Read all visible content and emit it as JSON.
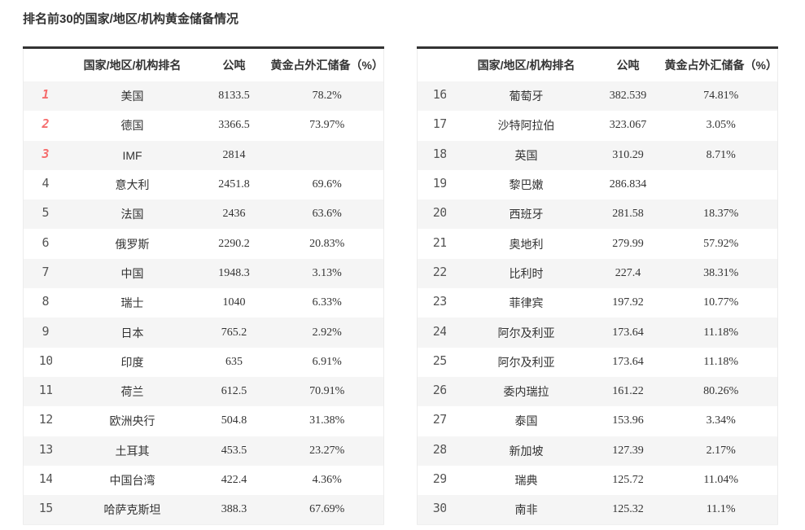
{
  "page_title": "排名前30的国家/地区/机构黄金储备情况",
  "colors": {
    "rank_top3": "#f56c6c",
    "rank_normal": "#555555",
    "stripe_row": "#f5f5f5",
    "table_top_border": "#333333",
    "text": "#333333"
  },
  "tables": [
    {
      "headers": {
        "rank": "",
        "name": "国家/地区/机构排名",
        "tons": "公吨",
        "pct": "黄金占外汇储备（%）"
      },
      "rows": [
        {
          "rank": "1",
          "name": "美国",
          "tons": "8133.5",
          "pct": "78.2%"
        },
        {
          "rank": "2",
          "name": "德国",
          "tons": "3366.5",
          "pct": "73.97%"
        },
        {
          "rank": "3",
          "name": "IMF",
          "tons": "2814",
          "pct": ""
        },
        {
          "rank": "4",
          "name": "意大利",
          "tons": "2451.8",
          "pct": "69.6%"
        },
        {
          "rank": "5",
          "name": "法国",
          "tons": "2436",
          "pct": "63.6%"
        },
        {
          "rank": "6",
          "name": "俄罗斯",
          "tons": "2290.2",
          "pct": "20.83%"
        },
        {
          "rank": "7",
          "name": "中国",
          "tons": "1948.3",
          "pct": "3.13%"
        },
        {
          "rank": "8",
          "name": "瑞士",
          "tons": "1040",
          "pct": "6.33%"
        },
        {
          "rank": "9",
          "name": "日本",
          "tons": "765.2",
          "pct": "2.92%"
        },
        {
          "rank": "10",
          "name": "印度",
          "tons": "635",
          "pct": "6.91%"
        },
        {
          "rank": "11",
          "name": "荷兰",
          "tons": "612.5",
          "pct": "70.91%"
        },
        {
          "rank": "12",
          "name": "欧洲央行",
          "tons": "504.8",
          "pct": "31.38%"
        },
        {
          "rank": "13",
          "name": "土耳其",
          "tons": "453.5",
          "pct": "23.27%"
        },
        {
          "rank": "14",
          "name": "中国台湾",
          "tons": "422.4",
          "pct": "4.36%"
        },
        {
          "rank": "15",
          "name": "哈萨克斯坦",
          "tons": "388.3",
          "pct": "67.69%"
        }
      ]
    },
    {
      "headers": {
        "rank": "",
        "name": "国家/地区/机构排名",
        "tons": "公吨",
        "pct": "黄金占外汇储备（%）"
      },
      "rows": [
        {
          "rank": "16",
          "name": "葡萄牙",
          "tons": "382.539",
          "pct": "74.81%"
        },
        {
          "rank": "17",
          "name": "沙特阿拉伯",
          "tons": "323.067",
          "pct": "3.05%"
        },
        {
          "rank": "18",
          "name": "英国",
          "tons": "310.29",
          "pct": "8.71%"
        },
        {
          "rank": "19",
          "name": "黎巴嫩",
          "tons": "286.834",
          "pct": ""
        },
        {
          "rank": "20",
          "name": "西班牙",
          "tons": "281.58",
          "pct": "18.37%"
        },
        {
          "rank": "21",
          "name": "奥地利",
          "tons": "279.99",
          "pct": "57.92%"
        },
        {
          "rank": "22",
          "name": "比利时",
          "tons": "227.4",
          "pct": "38.31%"
        },
        {
          "rank": "23",
          "name": "菲律宾",
          "tons": "197.92",
          "pct": "10.77%"
        },
        {
          "rank": "24",
          "name": "阿尔及利亚",
          "tons": "173.64",
          "pct": "11.18%"
        },
        {
          "rank": "25",
          "name": "阿尔及利亚",
          "tons": "173.64",
          "pct": "11.18%"
        },
        {
          "rank": "26",
          "name": "委内瑞拉",
          "tons": "161.22",
          "pct": "80.26%"
        },
        {
          "rank": "27",
          "name": "泰国",
          "tons": "153.96",
          "pct": "3.34%"
        },
        {
          "rank": "28",
          "name": "新加坡",
          "tons": "127.39",
          "pct": "2.17%"
        },
        {
          "rank": "29",
          "name": "瑞典",
          "tons": "125.72",
          "pct": "11.04%"
        },
        {
          "rank": "30",
          "name": "南非",
          "tons": "125.32",
          "pct": "11.1%"
        }
      ]
    }
  ]
}
